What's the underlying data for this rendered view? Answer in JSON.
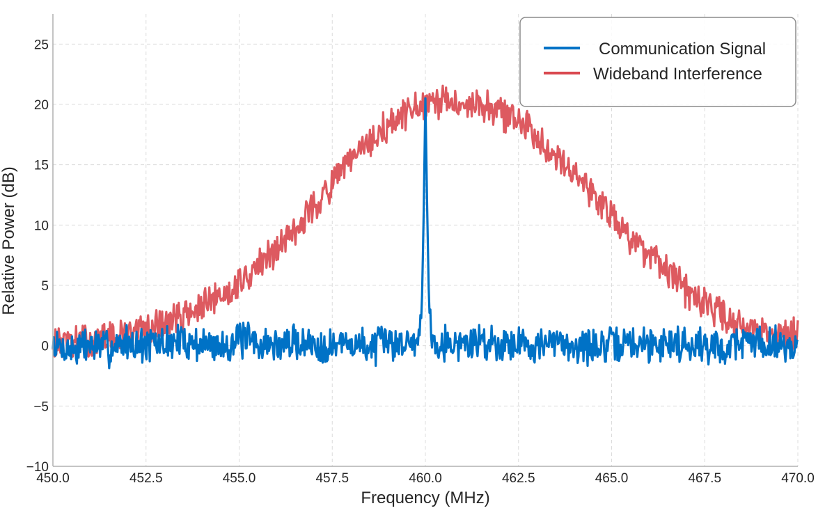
{
  "chart_data": {
    "type": "line",
    "title": "",
    "xlabel": "Frequency (MHz)",
    "ylabel": "Relative Power (dB)",
    "xlim": [
      450.0,
      470.0
    ],
    "ylim": [
      -10,
      27.5
    ],
    "grid": true,
    "legend_position": "top-right",
    "x_ticks": [
      450.0,
      452.5,
      455.0,
      457.5,
      460.0,
      462.5,
      465.0,
      467.5,
      470.0
    ],
    "x_tick_labels": [
      "450.0",
      "452.5",
      "455.0",
      "457.5",
      "460.0",
      "462.5",
      "465.0",
      "467.5",
      "470.0"
    ],
    "y_ticks": [
      -10,
      -5,
      0,
      5,
      10,
      15,
      20,
      25
    ],
    "y_tick_labels": [
      "−10",
      "−5",
      "0",
      "5",
      "10",
      "15",
      "20",
      "25"
    ],
    "series": [
      {
        "name": "Communication Signal",
        "color": "#0072c6",
        "x": [
          450.0,
          450.5,
          451.0,
          451.5,
          452.0,
          452.5,
          453.0,
          453.5,
          454.0,
          454.5,
          455.0,
          455.5,
          456.0,
          456.5,
          457.0,
          457.5,
          458.0,
          458.5,
          459.0,
          459.5,
          459.8,
          459.9,
          459.95,
          460.0,
          460.05,
          460.1,
          460.2,
          460.5,
          461.0,
          461.5,
          462.0,
          462.5,
          463.0,
          463.5,
          464.0,
          464.5,
          465.0,
          465.5,
          466.0,
          466.5,
          467.0,
          467.5,
          468.0,
          468.5,
          469.0,
          469.5,
          470.0
        ],
        "values": [
          0.0,
          -0.3,
          0.1,
          -0.2,
          0.3,
          0.0,
          0.2,
          0.4,
          0.1,
          0.0,
          0.5,
          0.2,
          0.0,
          0.3,
          0.1,
          0.0,
          0.2,
          -0.1,
          0.3,
          0.2,
          0.6,
          2.5,
          10.0,
          20.5,
          11.0,
          3.0,
          0.5,
          0.3,
          0.1,
          0.4,
          0.2,
          0.3,
          0.0,
          0.2,
          0.1,
          -0.1,
          0.0,
          0.2,
          0.1,
          0.3,
          0.2,
          0.0,
          -0.2,
          0.4,
          0.3,
          0.2,
          0.0
        ]
      },
      {
        "name": "Wideband Interference",
        "color": "#d9484f",
        "x": [
          450.0,
          450.5,
          451.0,
          451.5,
          452.0,
          452.5,
          453.0,
          453.5,
          454.0,
          454.5,
          455.0,
          455.5,
          456.0,
          456.5,
          457.0,
          457.5,
          458.0,
          458.5,
          459.0,
          459.5,
          460.0,
          460.5,
          461.0,
          461.5,
          462.0,
          462.5,
          463.0,
          463.5,
          464.0,
          464.5,
          465.0,
          465.5,
          466.0,
          466.5,
          467.0,
          467.5,
          468.0,
          468.5,
          469.0,
          469.5,
          470.0
        ],
        "values": [
          0.3,
          0.2,
          0.4,
          0.6,
          0.9,
          1.3,
          1.9,
          2.5,
          3.2,
          4.0,
          5.3,
          6.5,
          8.0,
          9.8,
          11.5,
          13.3,
          15.3,
          16.8,
          18.2,
          19.3,
          19.8,
          20.1,
          20.2,
          20.0,
          19.4,
          18.6,
          17.4,
          16.0,
          14.4,
          12.6,
          10.8,
          9.1,
          7.4,
          5.9,
          4.6,
          3.4,
          2.5,
          1.8,
          1.3,
          1.0,
          0.8
        ]
      }
    ]
  }
}
